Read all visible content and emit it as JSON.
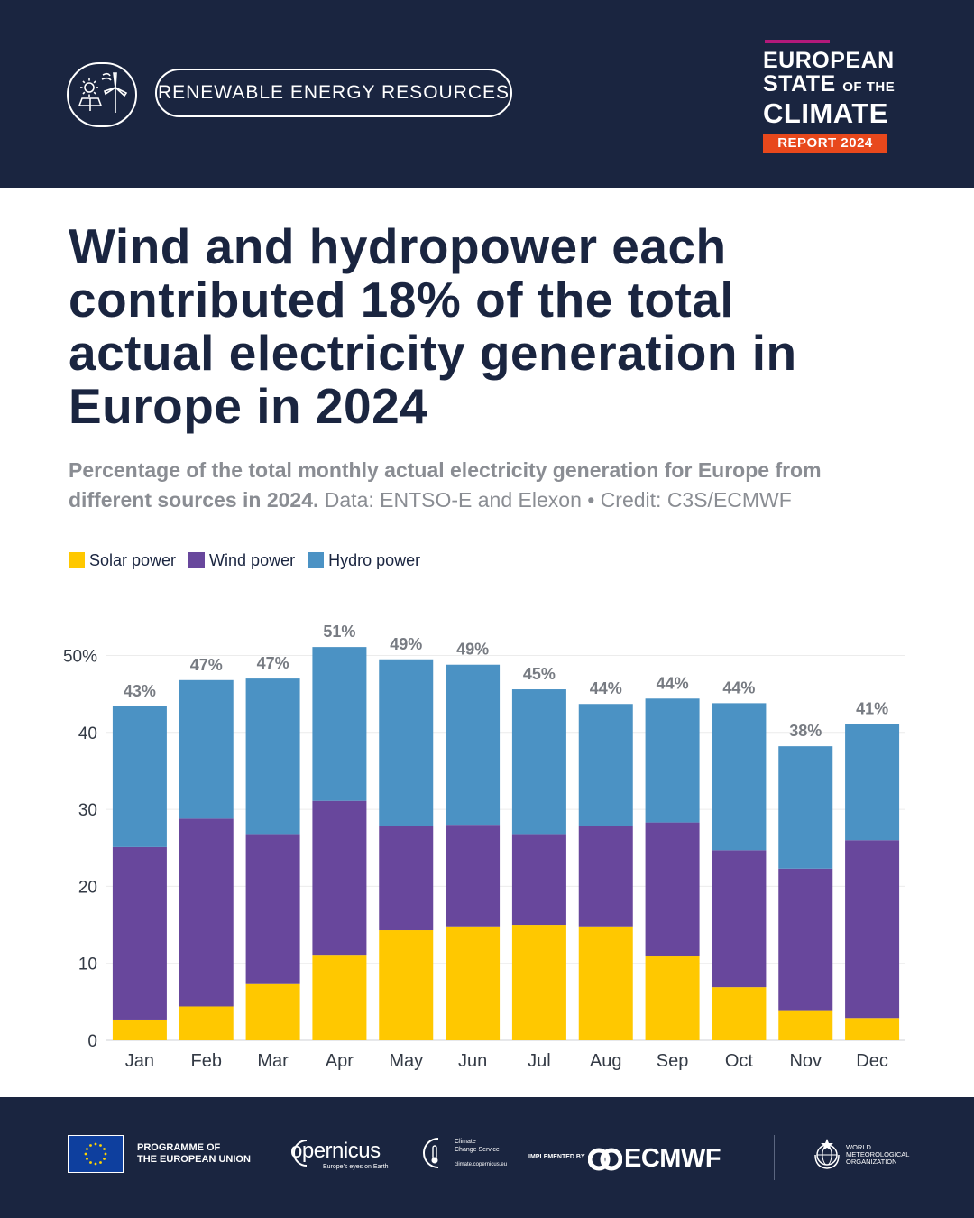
{
  "header": {
    "topic": "RENEWABLE ENERGY RESOURCES",
    "report": {
      "line1": "EUROPEAN",
      "line2_big": "STATE",
      "line2_small": "OF THE",
      "line3": "CLIMATE",
      "tag": "REPORT 2024"
    },
    "colors": {
      "background": "#1a2540",
      "accent_bar": "#b2197a",
      "tag": "#e8481c"
    }
  },
  "title": "Wind and hydropower each contributed 18% of the total actual electricity generation in Europe in 2024",
  "subtitle": {
    "strong": "Percentage of the total monthly actual electricity generation for Europe from different sources in 2024.",
    "rest": " Data: ENTSO-E and Elexon • Credit: C3S/ECMWF"
  },
  "chart_data": {
    "type": "bar",
    "stacked": true,
    "categories": [
      "Jan",
      "Feb",
      "Mar",
      "Apr",
      "May",
      "Jun",
      "Jul",
      "Aug",
      "Sep",
      "Oct",
      "Nov",
      "Dec"
    ],
    "series": [
      {
        "name": "Solar power",
        "color": "#ffc800",
        "values": [
          2.7,
          4.4,
          7.3,
          11.0,
          14.3,
          14.8,
          15.0,
          14.8,
          10.9,
          6.9,
          3.8,
          2.9
        ]
      },
      {
        "name": "Wind power",
        "color": "#68479c",
        "values": [
          22.4,
          24.4,
          19.5,
          20.1,
          13.6,
          13.2,
          11.8,
          13.0,
          17.4,
          17.8,
          18.5,
          23.1
        ]
      },
      {
        "name": "Hydro power",
        "color": "#4b92c4",
        "values": [
          18.3,
          18.0,
          20.2,
          20.0,
          21.6,
          20.8,
          18.8,
          15.9,
          16.1,
          19.1,
          15.9,
          15.1
        ]
      }
    ],
    "totals_labels": [
      "43%",
      "47%",
      "47%",
      "51%",
      "49%",
      "49%",
      "45%",
      "44%",
      "44%",
      "44%",
      "38%",
      "41%"
    ],
    "yticks": [
      "0",
      "10",
      "20",
      "30",
      "40",
      "50%"
    ],
    "ylim": [
      0,
      50
    ],
    "grid": true,
    "legend_position": "top-left"
  },
  "footer": {
    "eu_line1": "PROGRAMME OF",
    "eu_line2": "THE EUROPEAN UNION",
    "copernicus": "opernicus",
    "copernicus_tagline": "Europe's eyes on Earth",
    "c3s_line1": "Climate",
    "c3s_line2": "Change Service",
    "c3s_url": "climate.copernicus.eu",
    "implemented_by": "IMPLEMENTED BY",
    "ecmwf": "ECMWF",
    "wmo_line1": "WORLD",
    "wmo_line2": "METEOROLOGICAL",
    "wmo_line3": "ORGANIZATION"
  }
}
